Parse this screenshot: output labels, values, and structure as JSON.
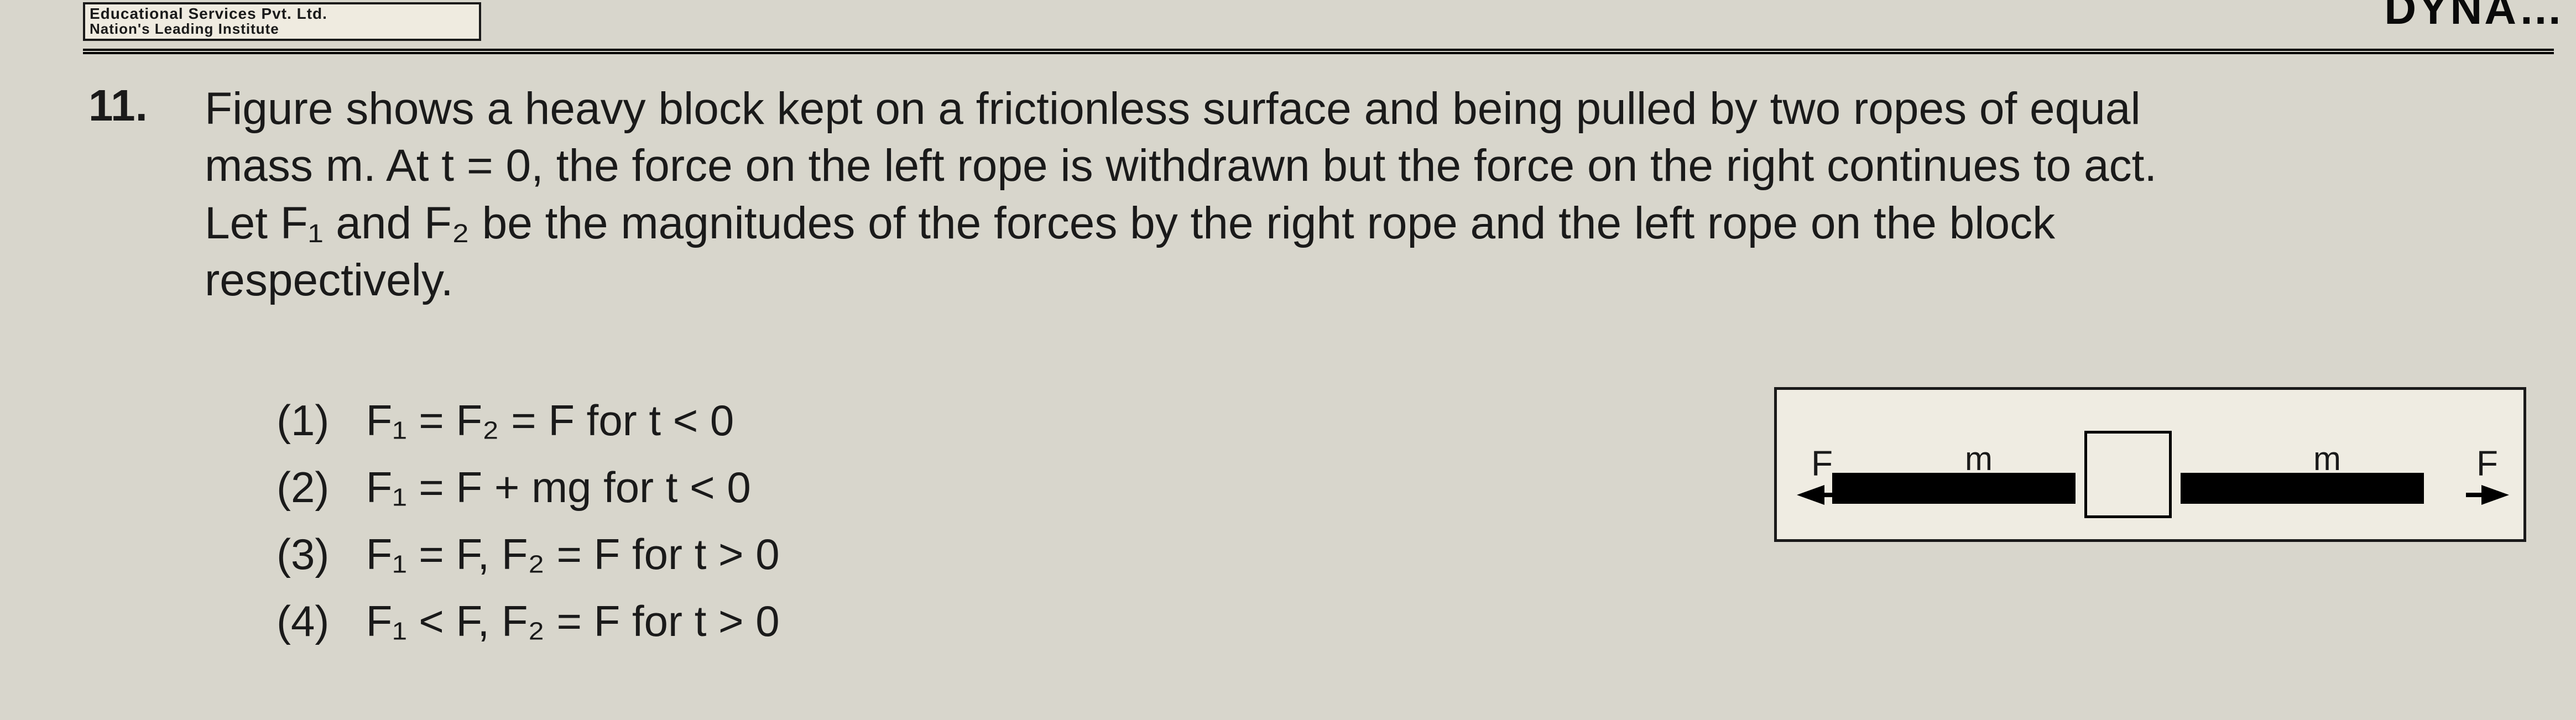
{
  "banner": {
    "line1": "Educational Services Pvt. Ltd.",
    "line2": "Nation's Leading Institute"
  },
  "top_right_partial": "DYNA…",
  "question": {
    "number": "11.",
    "line1": "Figure shows a heavy block kept on a frictionless surface and being pulled by two ropes of equal",
    "line2": "mass m. At t = 0, the force on the left rope is withdrawn but the force on the right continues to act.",
    "line3": "Let F₁ and F₂ be the magnitudes of the forces by the right rope and the left rope on the block",
    "line4": "respectively."
  },
  "options": {
    "o1_num": "(1)",
    "o1_txt": "F₁ = F₂ = F for t < 0",
    "o2_num": "(2)",
    "o2_txt": "F₁ = F + mg for t < 0",
    "o3_num": "(3)",
    "o3_txt": "F₁ = F, F₂ = F for t > 0",
    "o4_num": "(4)",
    "o4_txt": "F₁ < F, F₂ = F for t > 0"
  },
  "figure": {
    "left_force_label": "F",
    "right_force_label": "F",
    "rope_mass_label_left": "m",
    "rope_mass_label_right": "m",
    "colors": {
      "border": "#1a1a1a",
      "fill": "#efece2",
      "rope": "#000000"
    }
  }
}
